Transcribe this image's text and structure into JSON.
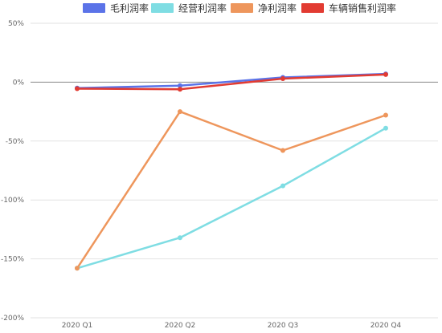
{
  "chart_data": {
    "type": "line",
    "categories": [
      "2020 Q1",
      "2020 Q2",
      "2020 Q3",
      "2020 Q4"
    ],
    "y_ticks": [
      "50%",
      "0%",
      "-50%",
      "-100%",
      "-150%",
      "-200%"
    ],
    "ylim": [
      -200,
      50
    ],
    "y_unit": "%",
    "grid": true,
    "legend_position": "top",
    "series": [
      {
        "name": "毛利润率",
        "color": "#5b73e8",
        "values": [
          -5,
          -3,
          4,
          7
        ]
      },
      {
        "name": "经营利润率",
        "color": "#7fdde3",
        "values": [
          -158,
          -132,
          -88,
          -39
        ]
      },
      {
        "name": "净利润率",
        "color": "#ee965c",
        "values": [
          -158,
          -25,
          -58,
          -28
        ]
      },
      {
        "name": "车辆销售利润率",
        "color": "#e23b32",
        "values": [
          -5.5,
          -6,
          3,
          6.5
        ]
      }
    ]
  }
}
